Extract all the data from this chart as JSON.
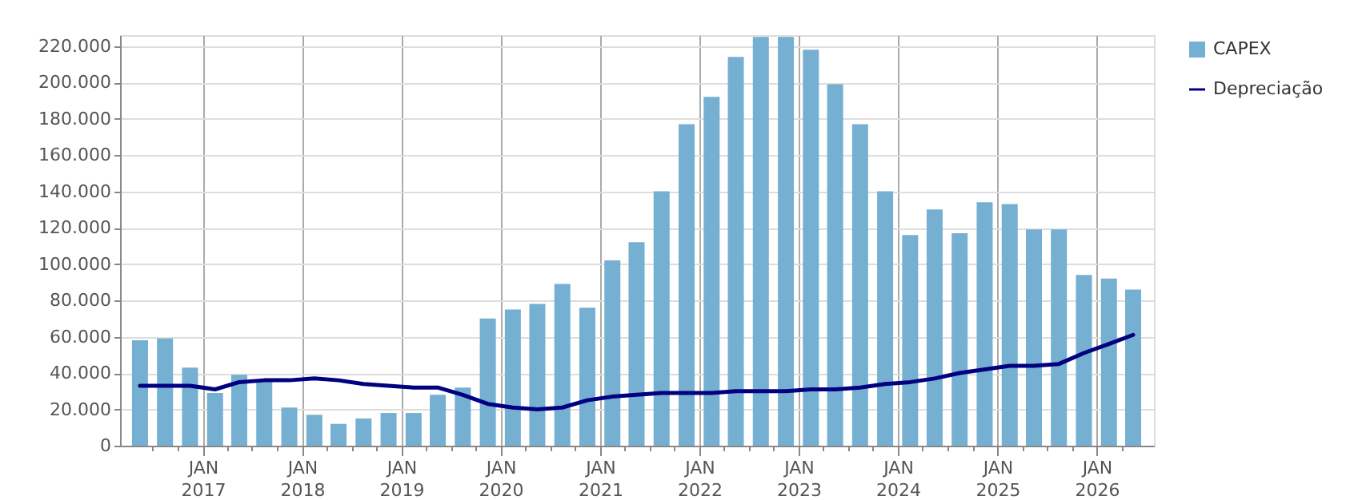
{
  "chart_data": {
    "type": "bar",
    "x": [
      "2016-05-15",
      "2016-08-15",
      "2016-11-15",
      "2017-02-15",
      "2017-05-15",
      "2017-08-15",
      "2017-11-15",
      "2018-02-15",
      "2018-05-15",
      "2018-08-15",
      "2018-11-15",
      "2019-02-15",
      "2019-05-15",
      "2019-08-15",
      "2019-11-15",
      "2020-02-15",
      "2020-05-15",
      "2020-08-15",
      "2020-11-15",
      "2021-02-15",
      "2021-05-15",
      "2021-08-15",
      "2021-11-15",
      "2022-02-15",
      "2022-05-15",
      "2022-08-15",
      "2022-11-15",
      "2023-02-15",
      "2023-05-15",
      "2023-08-15",
      "2023-11-15",
      "2024-02-15",
      "2024-05-15",
      "2024-08-15",
      "2024-11-15",
      "2025-02-15",
      "2025-05-15",
      "2025-08-15",
      "2025-11-15",
      "2026-02-15",
      "2026-05-15"
    ],
    "series": [
      {
        "name": "CAPEX",
        "color": "#75afd1",
        "values": [
          58000,
          59000,
          43000,
          29000,
          39000,
          36000,
          21000,
          17000,
          12000,
          15000,
          18000,
          18000,
          28000,
          32000,
          70000,
          75000,
          78000,
          89000,
          76000,
          102000,
          112000,
          140000,
          177000,
          192000,
          214000,
          225000,
          225000,
          218000,
          199000,
          177000,
          140000,
          116000,
          130000,
          117000,
          134000,
          133000,
          119000,
          119000,
          94000,
          92000,
          86000
        ]
      },
      {
        "name": "Depreciação",
        "type": "line",
        "color": "#000080",
        "values": [
          33000,
          33000,
          33000,
          31000,
          35000,
          36000,
          36000,
          37000,
          36000,
          34000,
          33000,
          32000,
          32000,
          28000,
          23000,
          21000,
          20000,
          21000,
          25000,
          27000,
          28000,
          29000,
          29000,
          29000,
          30000,
          30000,
          30000,
          31000,
          31000,
          32000,
          34000,
          35000,
          37000,
          40000,
          42000,
          44000,
          44000,
          45000,
          51000,
          56000,
          61000
        ]
      }
    ],
    "xlim": [
      "2016-04-01",
      "2026-07-01"
    ],
    "xticks": [
      {
        "value": "2016-07-01",
        "label": null
      },
      {
        "value": "2016-10-01",
        "label": null
      },
      {
        "value": "2017-01-01",
        "label": "JAN\n2017"
      },
      {
        "value": "2017-04-01",
        "label": null
      },
      {
        "value": "2017-07-01",
        "label": null
      },
      {
        "value": "2017-10-01",
        "label": null
      },
      {
        "value": "2018-01-01",
        "label": "JAN\n2018"
      },
      {
        "value": "2018-04-01",
        "label": null
      },
      {
        "value": "2018-07-01",
        "label": null
      },
      {
        "value": "2018-10-01",
        "label": null
      },
      {
        "value": "2019-01-01",
        "label": "JAN\n2019"
      },
      {
        "value": "2019-04-01",
        "label": null
      },
      {
        "value": "2019-07-01",
        "label": null
      },
      {
        "value": "2019-10-01",
        "label": null
      },
      {
        "value": "2020-01-01",
        "label": "JAN\n2020"
      },
      {
        "value": "2020-04-01",
        "label": null
      },
      {
        "value": "2020-07-01",
        "label": null
      },
      {
        "value": "2020-10-01",
        "label": null
      },
      {
        "value": "2021-01-01",
        "label": "JAN\n2021"
      },
      {
        "value": "2021-04-01",
        "label": null
      },
      {
        "value": "2021-07-01",
        "label": null
      },
      {
        "value": "2021-10-01",
        "label": null
      },
      {
        "value": "2022-01-01",
        "label": "JAN\n2022"
      },
      {
        "value": "2022-04-01",
        "label": null
      },
      {
        "value": "2022-07-01",
        "label": null
      },
      {
        "value": "2022-10-01",
        "label": null
      },
      {
        "value": "2023-01-01",
        "label": "JAN\n2023"
      },
      {
        "value": "2023-04-01",
        "label": null
      },
      {
        "value": "2023-07-01",
        "label": null
      },
      {
        "value": "2023-10-01",
        "label": null
      },
      {
        "value": "2024-01-01",
        "label": "JAN\n2024"
      },
      {
        "value": "2024-04-01",
        "label": null
      },
      {
        "value": "2024-07-01",
        "label": null
      },
      {
        "value": "2024-10-01",
        "label": null
      },
      {
        "value": "2025-01-01",
        "label": "JAN\n2025"
      },
      {
        "value": "2025-04-01",
        "label": null
      },
      {
        "value": "2025-07-01",
        "label": null
      },
      {
        "value": "2025-10-01",
        "label": null
      },
      {
        "value": "2026-01-01",
        "label": "JAN\n2026"
      },
      {
        "value": "2026-04-01",
        "label": null
      }
    ],
    "ylim": [
      0,
      226000
    ],
    "yticks": [
      {
        "value": 0,
        "label": "0"
      },
      {
        "value": 20000,
        "label": "20.000"
      },
      {
        "value": 40000,
        "label": "40.000"
      },
      {
        "value": 60000,
        "label": "60.000"
      },
      {
        "value": 80000,
        "label": "80.000"
      },
      {
        "value": 100000,
        "label": "100.000"
      },
      {
        "value": 120000,
        "label": "120.000"
      },
      {
        "value": 140000,
        "label": "140.000"
      },
      {
        "value": 160000,
        "label": "160.000"
      },
      {
        "value": 180000,
        "label": "180.000"
      },
      {
        "value": 200000,
        "label": "200.000"
      },
      {
        "value": 220000,
        "label": "220.000"
      }
    ],
    "grid": true,
    "legend": "top right"
  }
}
